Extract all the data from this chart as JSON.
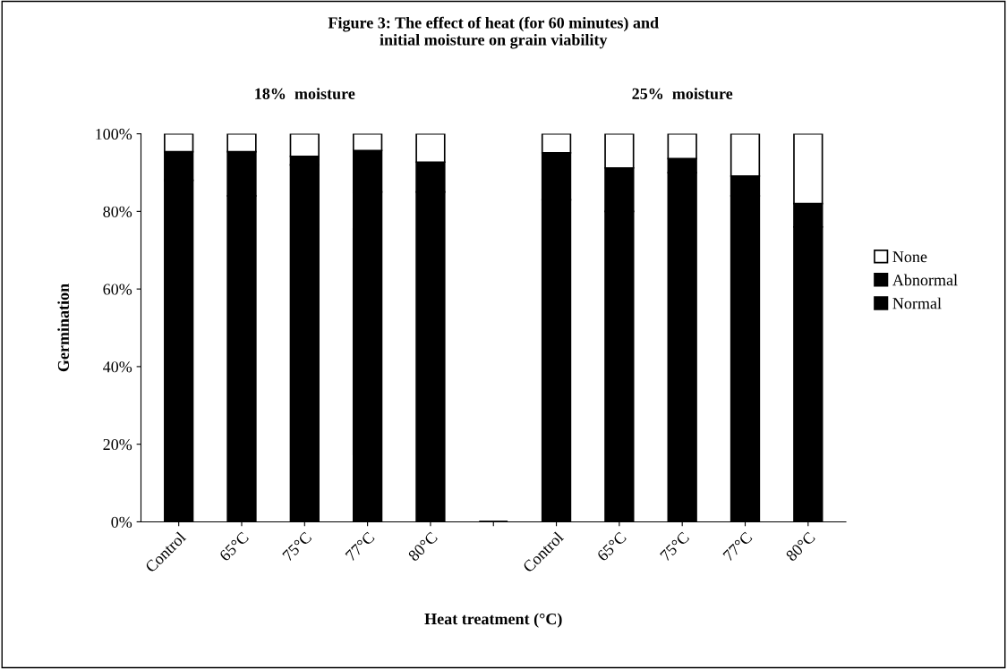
{
  "chart_data": {
    "type": "bar",
    "stacked": true,
    "title": "Figure 3: The effect of heat (for 60 minutes) and\ninitial moisture on grain viability",
    "annotations": [
      "18%  moisture",
      "25%  moisture"
    ],
    "xlabel": "Heat treatment (°C)",
    "ylabel": "Germination",
    "categories": [
      "Control",
      "65°C",
      "75°C",
      "77°C",
      "80°C",
      null,
      "Control",
      "65°C",
      "75°C",
      "77°C",
      "80°C"
    ],
    "series": [
      {
        "name": "Normal",
        "color": "#000000",
        "values": [
          88,
          84,
          92,
          85,
          85,
          null,
          83,
          80,
          90,
          84,
          76
        ]
      },
      {
        "name": "Abnormal",
        "color": "#000000",
        "values": [
          7.4,
          11.4,
          2.2,
          10.7,
          7.7,
          null,
          12.1,
          11.2,
          3.6,
          5.1,
          6
        ]
      },
      {
        "name": "None",
        "color": "#ffffff",
        "values": [
          4.6,
          4.6,
          5.8,
          4.3,
          7.3,
          null,
          4.9,
          8.8,
          6.4,
          10.9,
          18
        ]
      }
    ],
    "ylim": [
      0,
      100
    ],
    "yticks": [
      {
        "value": 0,
        "label": "0%"
      },
      {
        "value": 20,
        "label": "20%"
      },
      {
        "value": 40,
        "label": "40%"
      },
      {
        "value": 60,
        "label": "60%"
      },
      {
        "value": 80,
        "label": "80%"
      },
      {
        "value": 100,
        "label": "100%"
      }
    ],
    "legend": "right",
    "grid": false
  }
}
